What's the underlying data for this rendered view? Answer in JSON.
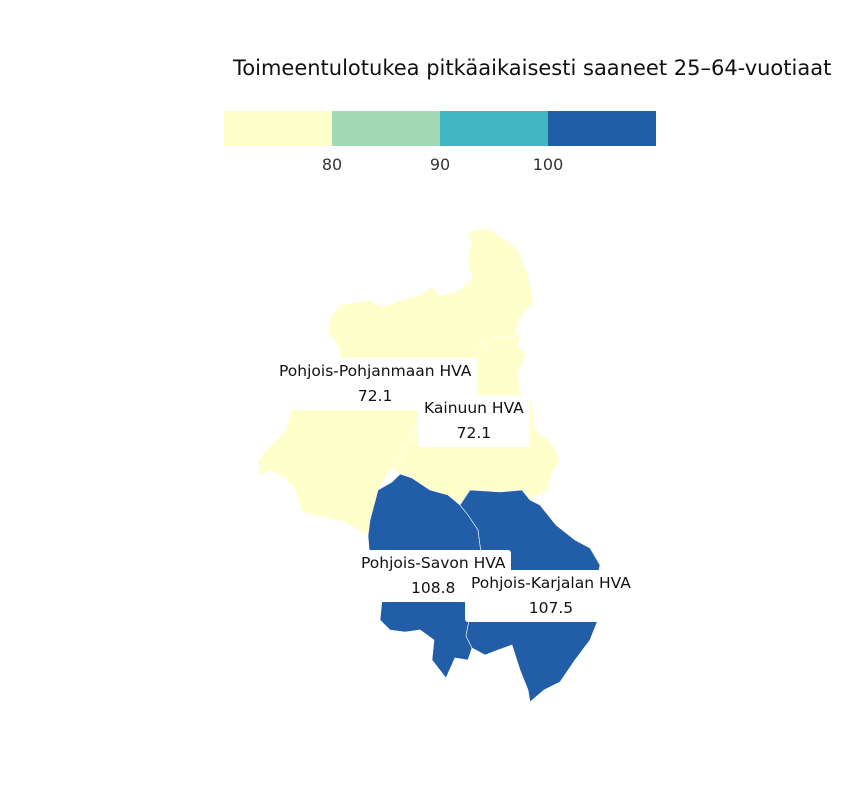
{
  "title": "Toimeentulotukea pitkäaikaisesti saaneet 25–64-vuotiaat",
  "legend": {
    "colors": [
      "#ffffcc",
      "#a1dab4",
      "#41b6c4",
      "#225ea8"
    ],
    "breaks": [
      "80",
      "90",
      "100"
    ]
  },
  "regions": [
    {
      "name": "Pohjois-Pohjanmaan HVA",
      "value": "72.1",
      "color": "#ffffcc"
    },
    {
      "name": "Kainuun HVA",
      "value": "72.1",
      "color": "#ffffcc"
    },
    {
      "name": "Pohjois-Savon HVA",
      "value": "108.8",
      "color": "#225ea8"
    },
    {
      "name": "Pohjois-Karjalan HVA",
      "value": "107.5",
      "color": "#225ea8"
    }
  ]
}
